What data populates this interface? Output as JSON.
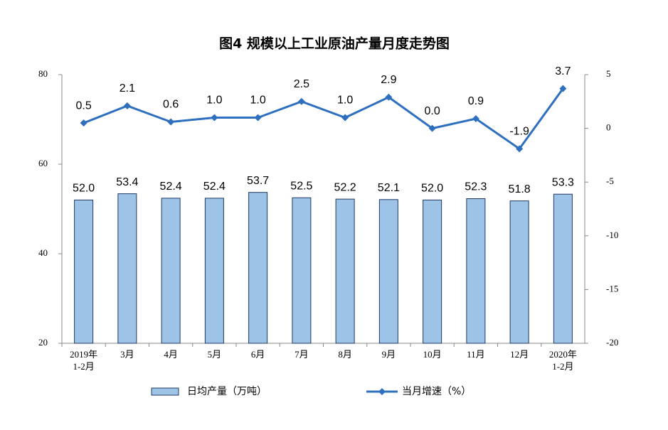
{
  "chart_data": {
    "type": "bar-line",
    "title": "图4  规模以上工业原油产量月度走势图",
    "categories": [
      "2019年\n1-2月",
      "3月",
      "4月",
      "5月",
      "6月",
      "7月",
      "8月",
      "9月",
      "10月",
      "11月",
      "12月",
      "2020年\n1-2月"
    ],
    "series": [
      {
        "name": "日均产量（万吨）",
        "type": "bar",
        "color": "#9dc3e6",
        "values": [
          52.0,
          53.4,
          52.4,
          52.4,
          53.7,
          52.5,
          52.2,
          52.1,
          52.0,
          52.3,
          51.8,
          53.3
        ],
        "value_labels": [
          "52.0",
          "53.4",
          "52.4",
          "52.4",
          "53.7",
          "52.5",
          "52.2",
          "52.1",
          "52.0",
          "52.3",
          "51.8",
          "53.3"
        ]
      },
      {
        "name": "当月增速（%）",
        "type": "line",
        "axis": "y2",
        "color": "#2e6fc0",
        "values": [
          0.5,
          2.1,
          0.6,
          1.0,
          1.0,
          2.5,
          1.0,
          2.9,
          0.0,
          0.9,
          -1.9,
          3.7
        ],
        "value_labels": [
          "0.5",
          "2.1",
          "0.6",
          "1.0",
          "1.0",
          "2.5",
          "1.0",
          "2.9",
          "0.0",
          "0.9",
          "-1.9",
          "3.7"
        ]
      }
    ],
    "ylim": [
      20,
      80
    ],
    "yticks": [
      20,
      40,
      60,
      80
    ],
    "y2lim": [
      -20,
      5
    ],
    "y2ticks": [
      -20,
      -15,
      -10,
      -5,
      0,
      5
    ],
    "grid": false,
    "legend": "bottom"
  }
}
